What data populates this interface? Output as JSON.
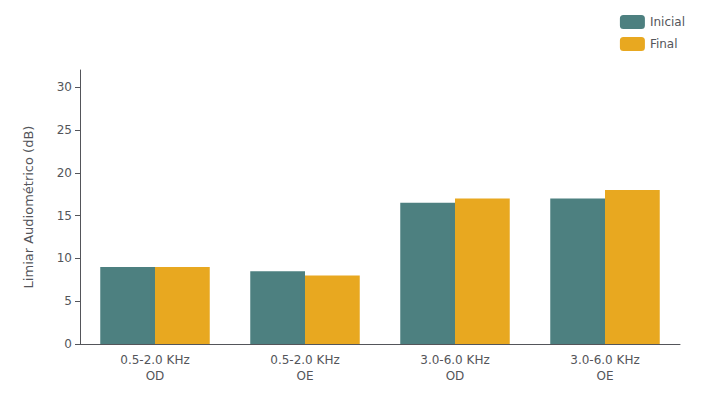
{
  "chart_data": {
    "type": "bar",
    "ylabel": "Limiar Audiométrico (dB)",
    "categories": [
      "0.5-2.0 KHz\nOD",
      "0.5-2.0 KHz\nOE",
      "3.0-6.0 KHz\nOD",
      "3.0-6.0 KHz\nOE"
    ],
    "series": [
      {
        "name": "Inicial",
        "color": "#4d8080",
        "values": [
          9.0,
          8.5,
          16.5,
          17.0
        ]
      },
      {
        "name": "Final",
        "color": "#e8a820",
        "values": [
          9.0,
          8.0,
          17.0,
          18.0
        ]
      }
    ],
    "ylim": [
      0,
      32
    ],
    "yticks": [
      0,
      5,
      10,
      15,
      20,
      25,
      30
    ],
    "grid": false,
    "legend": "upper right"
  }
}
